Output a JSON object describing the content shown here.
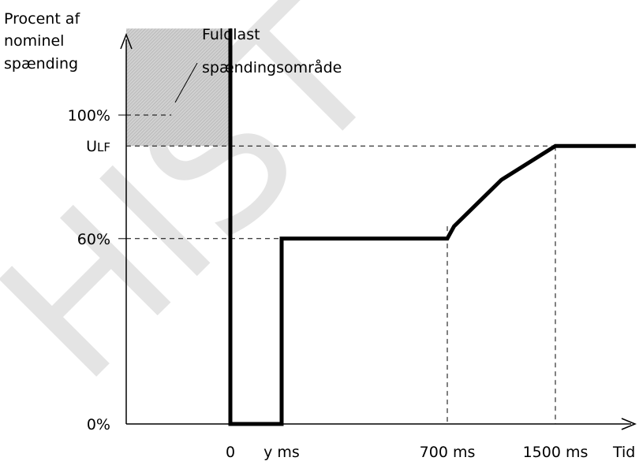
{
  "chart_data": {
    "type": "line",
    "y_axis_label_lines": [
      "Procent af",
      "nominel",
      "spænding"
    ],
    "x_axis_label": "Tid",
    "y_ticks": [
      {
        "label": "0%",
        "value": 0
      },
      {
        "label": "60%",
        "value": 60
      },
      {
        "label": "100%",
        "value": 100
      }
    ],
    "ulf_label": {
      "main": "U",
      "sub": "LF"
    },
    "ulf_value": 90,
    "x_ticks": [
      {
        "label": "0",
        "value": 0
      },
      {
        "label": "y ms",
        "value": 150
      },
      {
        "label": "700 ms",
        "value": 700
      },
      {
        "label": "1500 ms",
        "value": 1500
      }
    ],
    "series": [
      {
        "points": [
          {
            "x": 0,
            "y": 128
          },
          {
            "x": 0,
            "y": 0
          },
          {
            "x": 150,
            "y": 0
          },
          {
            "x": 150,
            "y": 60
          },
          {
            "x": 700,
            "y": 60
          },
          {
            "x": 750,
            "y": 64
          },
          {
            "x": 1100,
            "y": 79
          },
          {
            "x": 1500,
            "y": 90
          },
          {
            "x": 1900,
            "y": 90
          }
        ]
      }
    ],
    "shaded_region": {
      "x_from": -300,
      "x_to": 0,
      "y_from": 90,
      "y_to": 128,
      "color": "#c8c8c8"
    },
    "annotation_lines": [
      "Fuldlast",
      "spændingsområde"
    ],
    "watermark": "HIST",
    "xlim": [
      -300,
      1900
    ],
    "ylim": [
      0,
      128
    ],
    "grid": false
  }
}
